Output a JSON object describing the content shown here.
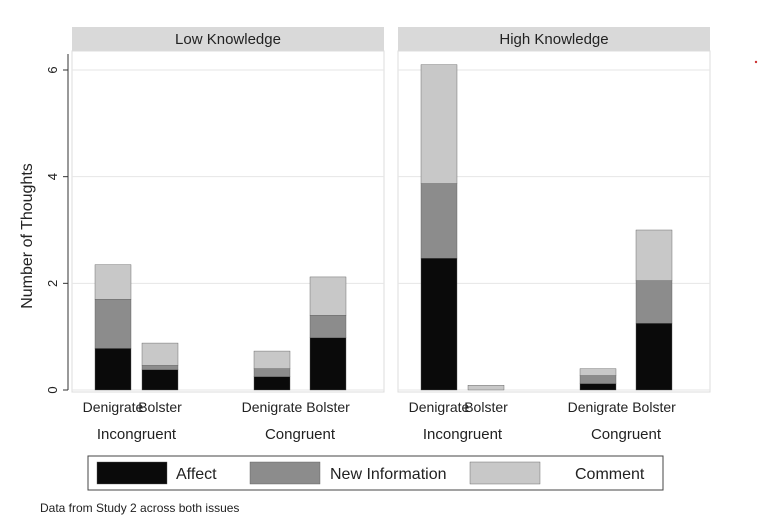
{
  "chart_data": {
    "type": "bar",
    "stacked": true,
    "ylabel": "Number of Thoughts",
    "ylim": [
      0,
      6.4
    ],
    "yticks": [
      0,
      2,
      4,
      6
    ],
    "grid": true,
    "legend_position": "bottom",
    "note": "Data from Study 2 across both issues",
    "series": [
      {
        "name": "Affect",
        "color": "#0a0a0a"
      },
      {
        "name": "New Information",
        "color": "#8c8c8c"
      },
      {
        "name": "Comment",
        "color": "#c8c8c8"
      }
    ],
    "panels": [
      {
        "title": "Low Knowledge",
        "groups": [
          {
            "label": "Incongruent",
            "bars": [
              {
                "label": "Denigrate",
                "values": [
                  0.78,
                  0.92,
                  0.65
                ]
              },
              {
                "label": "Bolster",
                "values": [
                  0.38,
                  0.08,
                  0.42
                ]
              }
            ]
          },
          {
            "label": "Congruent",
            "bars": [
              {
                "label": "Denigrate",
                "values": [
                  0.25,
                  0.15,
                  0.33
                ]
              },
              {
                "label": "Bolster",
                "values": [
                  0.98,
                  0.42,
                  0.72
                ]
              }
            ]
          }
        ]
      },
      {
        "title": "High Knowledge",
        "groups": [
          {
            "label": "Incongruent",
            "bars": [
              {
                "label": "Denigrate",
                "values": [
                  2.47,
                  1.4,
                  2.23
                ]
              },
              {
                "label": "Bolster",
                "values": [
                  0.0,
                  0.0,
                  0.09
                ]
              }
            ]
          },
          {
            "label": "Congruent",
            "bars": [
              {
                "label": "Denigrate",
                "values": [
                  0.12,
                  0.15,
                  0.13
                ]
              },
              {
                "label": "Bolster",
                "values": [
                  1.25,
                  0.8,
                  0.95
                ]
              }
            ]
          }
        ]
      }
    ]
  }
}
